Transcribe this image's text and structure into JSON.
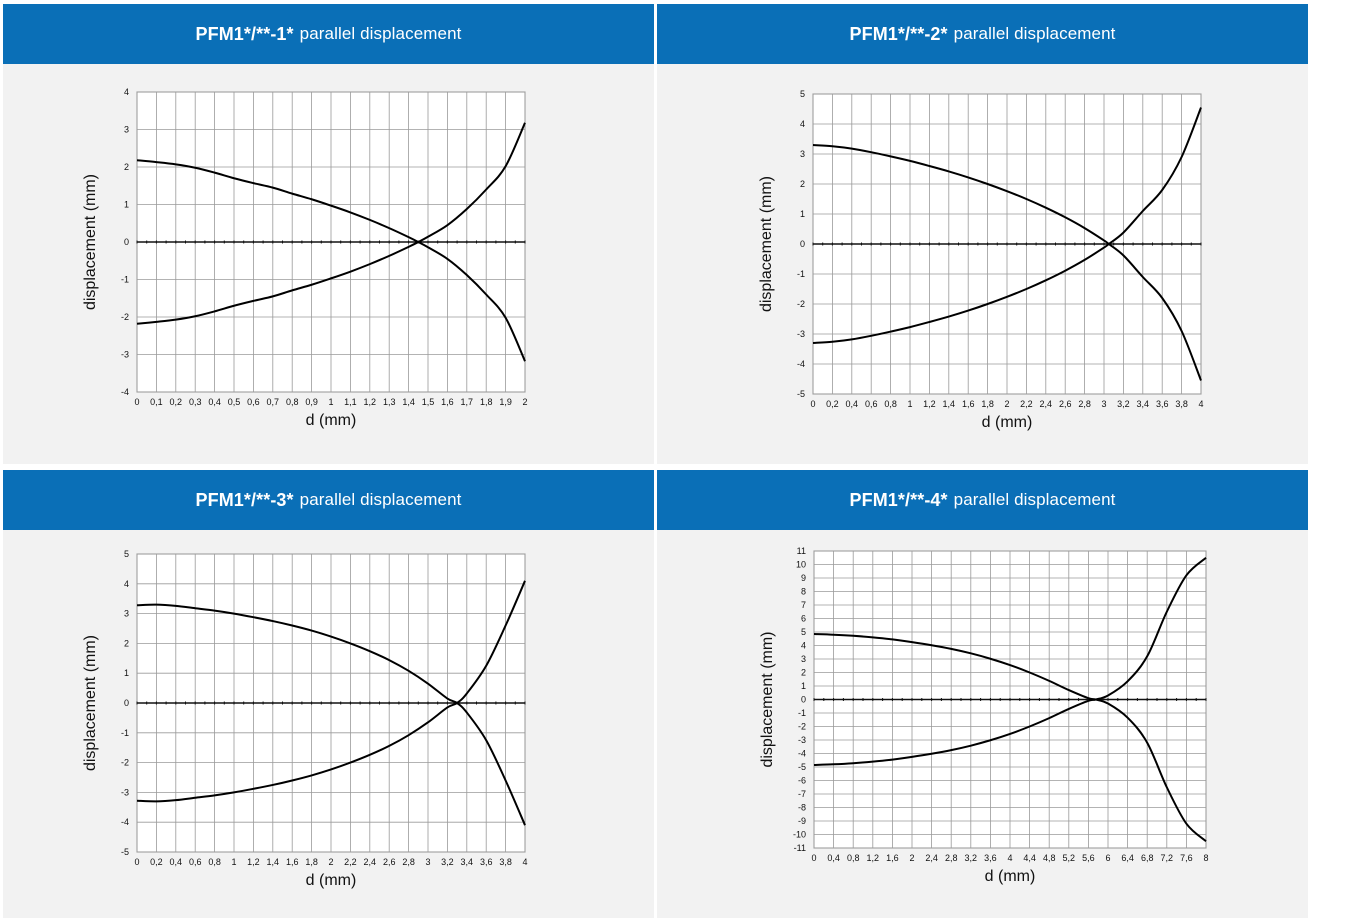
{
  "charts": [
    {
      "model": "PFM1*/**-1*",
      "desc": "parallel displacement",
      "chart_data": {
        "type": "line",
        "title": "PFM1*/**-1* parallel displacement",
        "xlabel": "d (mm)",
        "ylabel": "displacement (mm)",
        "xlim": [
          0,
          2
        ],
        "ylim": [
          -4,
          4
        ],
        "x_ticks": [
          "0",
          "0,1",
          "0,2",
          "0,3",
          "0,4",
          "0,5",
          "0,6",
          "0,7",
          "0,8",
          "0,9",
          "1",
          "1,1",
          "1,2",
          "1,3",
          "1,4",
          "1,5",
          "1,6",
          "1,7",
          "1,8",
          "1,9",
          "2"
        ],
        "y_ticks": [
          "-4",
          "-3",
          "-2",
          "-1",
          "0",
          "1",
          "2",
          "3",
          "4"
        ],
        "grid": true,
        "series": [
          {
            "x": [
              0,
              0.1,
              0.2,
              0.3,
              0.4,
              0.5,
              0.6,
              0.7,
              0.8,
              0.9,
              1.0,
              1.1,
              1.2,
              1.3,
              1.4,
              1.45,
              1.5,
              1.6,
              1.7,
              1.8,
              1.9,
              2.0
            ],
            "y": [
              2.18,
              2.13,
              2.07,
              1.98,
              1.85,
              1.7,
              1.57,
              1.45,
              1.29,
              1.14,
              0.97,
              0.79,
              0.59,
              0.37,
              0.13,
              0.0,
              -0.14,
              -0.45,
              -0.88,
              -1.4,
              -2.02,
              -3.18
            ]
          },
          {
            "x": [
              0,
              0.1,
              0.2,
              0.3,
              0.4,
              0.5,
              0.6,
              0.7,
              0.8,
              0.9,
              1.0,
              1.1,
              1.2,
              1.3,
              1.4,
              1.45,
              1.5,
              1.6,
              1.7,
              1.8,
              1.9,
              2.0
            ],
            "y": [
              -2.18,
              -2.13,
              -2.07,
              -1.98,
              -1.85,
              -1.7,
              -1.57,
              -1.45,
              -1.29,
              -1.14,
              -0.97,
              -0.79,
              -0.59,
              -0.37,
              -0.13,
              0.0,
              0.14,
              0.45,
              0.88,
              1.4,
              2.02,
              3.18
            ]
          }
        ]
      }
    },
    {
      "model": "PFM1*/**-2*",
      "desc": "parallel displacement",
      "chart_data": {
        "type": "line",
        "title": "PFM1*/**-2* parallel displacement",
        "xlabel": "d (mm)",
        "ylabel": "displacement (mm)",
        "xlim": [
          0,
          4
        ],
        "ylim": [
          -5,
          5
        ],
        "x_ticks": [
          "0",
          "0,2",
          "0,4",
          "0,6",
          "0,8",
          "1",
          "1,2",
          "1,4",
          "1,6",
          "1,8",
          "2",
          "2,2",
          "2,4",
          "2,6",
          "2,8",
          "3",
          "3,2",
          "3,4",
          "3,6",
          "3,8",
          "4"
        ],
        "y_ticks": [
          "-5",
          "-4",
          "-3",
          "-2",
          "-1",
          "0",
          "1",
          "2",
          "3",
          "4",
          "5"
        ],
        "grid": true,
        "series": [
          {
            "x": [
              0,
              0.2,
              0.4,
              0.6,
              0.8,
              1.0,
              1.2,
              1.4,
              1.6,
              1.8,
              2.0,
              2.2,
              2.4,
              2.6,
              2.8,
              3.0,
              3.05,
              3.2,
              3.4,
              3.6,
              3.8,
              4.0
            ],
            "y": [
              3.3,
              3.26,
              3.18,
              3.06,
              2.92,
              2.77,
              2.6,
              2.42,
              2.22,
              2.0,
              1.76,
              1.5,
              1.21,
              0.89,
              0.53,
              0.12,
              0.0,
              -0.38,
              -1.1,
              -1.8,
              -2.9,
              -4.55
            ]
          },
          {
            "x": [
              0,
              0.2,
              0.4,
              0.6,
              0.8,
              1.0,
              1.2,
              1.4,
              1.6,
              1.8,
              2.0,
              2.2,
              2.4,
              2.6,
              2.8,
              3.0,
              3.05,
              3.2,
              3.4,
              3.6,
              3.8,
              4.0
            ],
            "y": [
              -3.3,
              -3.26,
              -3.18,
              -3.06,
              -2.92,
              -2.77,
              -2.6,
              -2.42,
              -2.22,
              -2.0,
              -1.76,
              -1.5,
              -1.21,
              -0.89,
              -0.53,
              -0.12,
              0.0,
              0.38,
              1.1,
              1.8,
              2.9,
              4.55
            ]
          }
        ]
      }
    },
    {
      "model": "PFM1*/**-3*",
      "desc": "parallel displacement",
      "chart_data": {
        "type": "line",
        "title": "PFM1*/**-3* parallel displacement",
        "xlabel": "d (mm)",
        "ylabel": "displacement (mm)",
        "xlim": [
          0,
          4
        ],
        "ylim": [
          -5,
          5
        ],
        "x_ticks": [
          "0",
          "0,2",
          "0,4",
          "0,6",
          "0,8",
          "1",
          "1,2",
          "1,4",
          "1,6",
          "1,8",
          "2",
          "2,2",
          "2,4",
          "2,6",
          "2,8",
          "3",
          "3,2",
          "3,4",
          "3,6",
          "3,8",
          "4"
        ],
        "y_ticks": [
          "-5",
          "-4",
          "-3",
          "-2",
          "-1",
          "0",
          "1",
          "2",
          "3",
          "4",
          "5"
        ],
        "grid": true,
        "series": [
          {
            "x": [
              0,
              0.2,
              0.4,
              0.6,
              0.8,
              1.0,
              1.2,
              1.4,
              1.6,
              1.8,
              2.0,
              2.2,
              2.4,
              2.6,
              2.8,
              3.0,
              3.2,
              3.3,
              3.4,
              3.6,
              3.8,
              4.0
            ],
            "y": [
              3.28,
              3.3,
              3.26,
              3.18,
              3.1,
              3.0,
              2.88,
              2.75,
              2.6,
              2.43,
              2.23,
              2.0,
              1.74,
              1.44,
              1.08,
              0.65,
              0.15,
              0.0,
              -0.32,
              -1.25,
              -2.6,
              -4.1
            ]
          },
          {
            "x": [
              0,
              0.2,
              0.4,
              0.6,
              0.8,
              1.0,
              1.2,
              1.4,
              1.6,
              1.8,
              2.0,
              2.2,
              2.4,
              2.6,
              2.8,
              3.0,
              3.2,
              3.3,
              3.4,
              3.6,
              3.8,
              4.0
            ],
            "y": [
              -3.28,
              -3.3,
              -3.26,
              -3.18,
              -3.1,
              -3.0,
              -2.88,
              -2.75,
              -2.6,
              -2.43,
              -2.23,
              -2.0,
              -1.74,
              -1.44,
              -1.08,
              -0.65,
              -0.15,
              0.0,
              0.32,
              1.25,
              2.6,
              4.1
            ]
          }
        ]
      }
    },
    {
      "model": "PFM1*/**-4*",
      "desc": "parallel displacement",
      "chart_data": {
        "type": "line",
        "title": "PFM1*/**-4* parallel displacement",
        "xlabel": "d (mm)",
        "ylabel": "displacement (mm)",
        "xlim": [
          0,
          8
        ],
        "ylim": [
          -11,
          11
        ],
        "x_ticks": [
          "0",
          "0,4",
          "0,8",
          "1,2",
          "1,6",
          "2",
          "2,4",
          "2,8",
          "3,2",
          "3,6",
          "4",
          "4,4",
          "4,8",
          "5,2",
          "5,6",
          "6",
          "6,4",
          "6,8",
          "7,2",
          "7,6",
          "8"
        ],
        "y_ticks": [
          "-11",
          "-10",
          "-9",
          "-8",
          "-7",
          "-6",
          "-5",
          "-4",
          "-3",
          "-2",
          "-1",
          "0",
          "1",
          "2",
          "3",
          "4",
          "5",
          "6",
          "7",
          "8",
          "9",
          "10",
          "11"
        ],
        "grid": true,
        "series": [
          {
            "x": [
              0,
              0.4,
              0.8,
              1.2,
              1.6,
              2.0,
              2.4,
              2.8,
              3.2,
              3.6,
              4.0,
              4.4,
              4.8,
              5.2,
              5.6,
              5.75,
              6.0,
              6.4,
              6.8,
              7.2,
              7.6,
              8.0
            ],
            "y": [
              4.85,
              4.8,
              4.72,
              4.6,
              4.45,
              4.25,
              4.02,
              3.75,
              3.42,
              3.02,
              2.55,
              2.0,
              1.38,
              0.7,
              0.1,
              0.0,
              -0.3,
              -1.35,
              -3.2,
              -6.5,
              -9.2,
              -10.5
            ]
          },
          {
            "x": [
              0,
              0.4,
              0.8,
              1.2,
              1.6,
              2.0,
              2.4,
              2.8,
              3.2,
              3.6,
              4.0,
              4.4,
              4.8,
              5.2,
              5.6,
              5.75,
              6.0,
              6.4,
              6.8,
              7.2,
              7.6,
              8.0
            ],
            "y": [
              -4.85,
              -4.8,
              -4.72,
              -4.6,
              -4.45,
              -4.25,
              -4.02,
              -3.75,
              -3.42,
              -3.02,
              -2.55,
              -2.0,
              -1.38,
              -0.7,
              -0.1,
              0.0,
              0.3,
              1.35,
              3.2,
              6.5,
              9.2,
              10.5
            ]
          }
        ]
      }
    }
  ]
}
